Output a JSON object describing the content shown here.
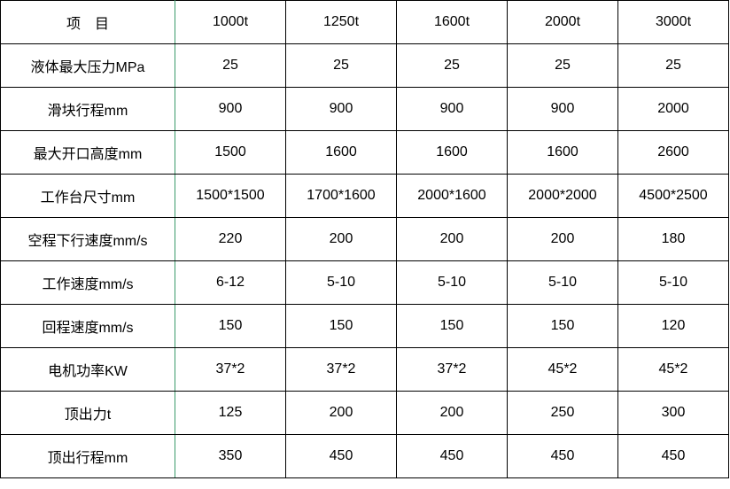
{
  "header": {
    "label": "项　目",
    "models": [
      "1000t",
      "1250t",
      "1600t",
      "2000t",
      "3000t"
    ]
  },
  "rows": [
    {
      "label": "液体最大压力MPa",
      "values": [
        "25",
        "25",
        "25",
        "25",
        "25"
      ]
    },
    {
      "label": "滑块行程mm",
      "values": [
        "900",
        "900",
        "900",
        "900",
        "2000"
      ]
    },
    {
      "label": "最大开口高度mm",
      "values": [
        "1500",
        "1600",
        "1600",
        "1600",
        "2600"
      ]
    },
    {
      "label": "工作台尺寸mm",
      "values": [
        "1500*1500",
        "1700*1600",
        "2000*1600",
        "2000*2000",
        "4500*2500"
      ]
    },
    {
      "label": "空程下行速度mm/s",
      "values": [
        "220",
        "200",
        "200",
        "200",
        "180"
      ]
    },
    {
      "label": "工作速度mm/s",
      "values": [
        "6-12",
        "5-10",
        "5-10",
        "5-10",
        "5-10"
      ]
    },
    {
      "label": "回程速度mm/s",
      "values": [
        "150",
        "150",
        "150",
        "150",
        "120"
      ]
    },
    {
      "label": "电机功率KW",
      "values": [
        "37*2",
        "37*2",
        "37*2",
        "45*2",
        "45*2"
      ]
    },
    {
      "label": "顶出力t",
      "values": [
        "125",
        "200",
        "200",
        "250",
        "300"
      ]
    },
    {
      "label": "顶出行程mm",
      "values": [
        "350",
        "450",
        "450",
        "450",
        "450"
      ]
    }
  ]
}
